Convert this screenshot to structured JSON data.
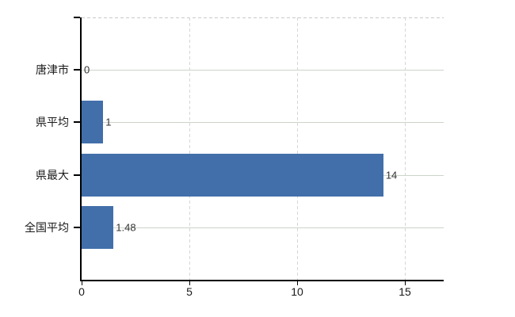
{
  "chart_data": {
    "type": "bar",
    "orientation": "horizontal",
    "title": "",
    "categories": [
      "唐津市",
      "県平均",
      "県最大",
      "全国平均"
    ],
    "values": [
      0,
      1,
      14,
      1.48
    ],
    "value_labels": [
      "0",
      "1",
      "14",
      "1.48"
    ],
    "x_ticks": [
      0,
      5,
      10,
      15
    ],
    "x_tick_labels": [
      "0",
      "5",
      "10",
      "15"
    ],
    "xlim": [
      0,
      16.8
    ],
    "grid": true,
    "legend": false,
    "colors": {
      "bar": "#426faa",
      "category_gridline": "#ccd4ca",
      "value_gridline": "#d6d6d6",
      "plot_top_border": "#c9c9c9",
      "axis": "#000000",
      "data_label": "#333333",
      "tick_label": "#1a1a1a"
    }
  }
}
